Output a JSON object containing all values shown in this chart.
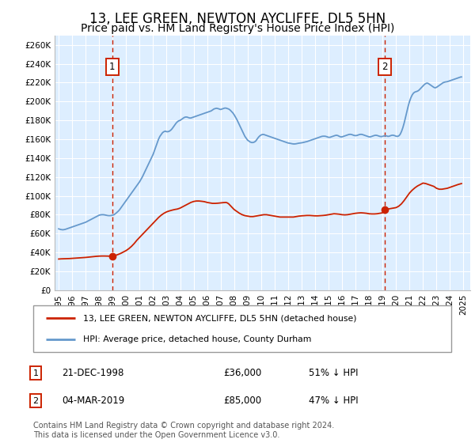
{
  "title": "13, LEE GREEN, NEWTON AYCLIFFE, DL5 5HN",
  "subtitle": "Price paid vs. HM Land Registry's House Price Index (HPI)",
  "title_fontsize": 12,
  "subtitle_fontsize": 10,
  "background_color": "#ffffff",
  "plot_bg_color": "#ddeeff",
  "grid_color": "#ffffff",
  "ylim": [
    0,
    270000
  ],
  "yticks": [
    0,
    20000,
    40000,
    60000,
    80000,
    100000,
    120000,
    140000,
    160000,
    180000,
    200000,
    220000,
    240000,
    260000
  ],
  "ytick_labels": [
    "£0",
    "£20K",
    "£40K",
    "£60K",
    "£80K",
    "£100K",
    "£120K",
    "£140K",
    "£160K",
    "£180K",
    "£200K",
    "£220K",
    "£240K",
    "£260K"
  ],
  "xlim_start": 1994.7,
  "xlim_end": 2025.5,
  "xticks": [
    1995,
    1996,
    1997,
    1998,
    1999,
    2000,
    2001,
    2002,
    2003,
    2004,
    2005,
    2006,
    2007,
    2008,
    2009,
    2010,
    2011,
    2012,
    2013,
    2014,
    2015,
    2016,
    2017,
    2018,
    2019,
    2020,
    2021,
    2022,
    2023,
    2024,
    2025
  ],
  "hpi_color": "#6699cc",
  "property_color": "#cc2200",
  "sale1_x": 1998.97,
  "sale1_y": 36000,
  "sale2_x": 2019.17,
  "sale2_y": 85000,
  "vline_color": "#cc2200",
  "marker_color": "#cc2200",
  "note1_date": "21-DEC-1998",
  "note1_price": "£36,000",
  "note1_hpi": "51% ↓ HPI",
  "note2_date": "04-MAR-2019",
  "note2_price": "£85,000",
  "note2_hpi": "47% ↓ HPI",
  "footer": "Contains HM Land Registry data © Crown copyright and database right 2024.\nThis data is licensed under the Open Government Licence v3.0.",
  "hpi_data": [
    [
      1995.0,
      65000
    ],
    [
      1995.1,
      64500
    ],
    [
      1995.2,
      64200
    ],
    [
      1995.3,
      64000
    ],
    [
      1995.4,
      64200
    ],
    [
      1995.5,
      64500
    ],
    [
      1995.6,
      65000
    ],
    [
      1995.7,
      65500
    ],
    [
      1995.8,
      66000
    ],
    [
      1995.9,
      66500
    ],
    [
      1996.0,
      67000
    ],
    [
      1996.1,
      67500
    ],
    [
      1996.2,
      68000
    ],
    [
      1996.3,
      68500
    ],
    [
      1996.4,
      69000
    ],
    [
      1996.5,
      69500
    ],
    [
      1996.6,
      70000
    ],
    [
      1996.7,
      70500
    ],
    [
      1996.8,
      71000
    ],
    [
      1996.9,
      71500
    ],
    [
      1997.0,
      72000
    ],
    [
      1997.1,
      72800
    ],
    [
      1997.2,
      73500
    ],
    [
      1997.3,
      74200
    ],
    [
      1997.4,
      75000
    ],
    [
      1997.5,
      75800
    ],
    [
      1997.6,
      76500
    ],
    [
      1997.7,
      77200
    ],
    [
      1997.8,
      78000
    ],
    [
      1997.9,
      78800
    ],
    [
      1998.0,
      79500
    ],
    [
      1998.1,
      79800
    ],
    [
      1998.2,
      80000
    ],
    [
      1998.3,
      80000
    ],
    [
      1998.4,
      79800
    ],
    [
      1998.5,
      79500
    ],
    [
      1998.6,
      79200
    ],
    [
      1998.7,
      79000
    ],
    [
      1998.8,
      79000
    ],
    [
      1998.9,
      79200
    ],
    [
      1999.0,
      79500
    ],
    [
      1999.1,
      80000
    ],
    [
      1999.2,
      81000
    ],
    [
      1999.3,
      82200
    ],
    [
      1999.4,
      83500
    ],
    [
      1999.5,
      85000
    ],
    [
      1999.6,
      87000
    ],
    [
      1999.7,
      89000
    ],
    [
      1999.8,
      91000
    ],
    [
      1999.9,
      93000
    ],
    [
      2000.0,
      95000
    ],
    [
      2000.1,
      97000
    ],
    [
      2000.2,
      99000
    ],
    [
      2000.3,
      101000
    ],
    [
      2000.4,
      103000
    ],
    [
      2000.5,
      105000
    ],
    [
      2000.6,
      107000
    ],
    [
      2000.7,
      109000
    ],
    [
      2000.8,
      111000
    ],
    [
      2000.9,
      113000
    ],
    [
      2001.0,
      115000
    ],
    [
      2001.1,
      117500
    ],
    [
      2001.2,
      120000
    ],
    [
      2001.3,
      123000
    ],
    [
      2001.4,
      126000
    ],
    [
      2001.5,
      129000
    ],
    [
      2001.6,
      132000
    ],
    [
      2001.7,
      135000
    ],
    [
      2001.8,
      138000
    ],
    [
      2001.9,
      141000
    ],
    [
      2002.0,
      144000
    ],
    [
      2002.1,
      148000
    ],
    [
      2002.2,
      152000
    ],
    [
      2002.3,
      156000
    ],
    [
      2002.4,
      160000
    ],
    [
      2002.5,
      163000
    ],
    [
      2002.6,
      165000
    ],
    [
      2002.7,
      167000
    ],
    [
      2002.8,
      168000
    ],
    [
      2002.9,
      168500
    ],
    [
      2003.0,
      168000
    ],
    [
      2003.1,
      168000
    ],
    [
      2003.2,
      168500
    ],
    [
      2003.3,
      169500
    ],
    [
      2003.4,
      171000
    ],
    [
      2003.5,
      173000
    ],
    [
      2003.6,
      175000
    ],
    [
      2003.7,
      177000
    ],
    [
      2003.8,
      178500
    ],
    [
      2003.9,
      179500
    ],
    [
      2004.0,
      180000
    ],
    [
      2004.1,
      181000
    ],
    [
      2004.2,
      182000
    ],
    [
      2004.3,
      183000
    ],
    [
      2004.4,
      183500
    ],
    [
      2004.5,
      183500
    ],
    [
      2004.6,
      183000
    ],
    [
      2004.7,
      182500
    ],
    [
      2004.8,
      182500
    ],
    [
      2004.9,
      183000
    ],
    [
      2005.0,
      183500
    ],
    [
      2005.1,
      184000
    ],
    [
      2005.2,
      184500
    ],
    [
      2005.3,
      185000
    ],
    [
      2005.4,
      185500
    ],
    [
      2005.5,
      186000
    ],
    [
      2005.6,
      186500
    ],
    [
      2005.7,
      187000
    ],
    [
      2005.8,
      187500
    ],
    [
      2005.9,
      188000
    ],
    [
      2006.0,
      188500
    ],
    [
      2006.1,
      189000
    ],
    [
      2006.2,
      189500
    ],
    [
      2006.3,
      190000
    ],
    [
      2006.4,
      191000
    ],
    [
      2006.5,
      192000
    ],
    [
      2006.6,
      192500
    ],
    [
      2006.7,
      192800
    ],
    [
      2006.8,
      192500
    ],
    [
      2006.9,
      192000
    ],
    [
      2007.0,
      191500
    ],
    [
      2007.1,
      192000
    ],
    [
      2007.2,
      192500
    ],
    [
      2007.3,
      193000
    ],
    [
      2007.4,
      193000
    ],
    [
      2007.5,
      192500
    ],
    [
      2007.6,
      192000
    ],
    [
      2007.7,
      191000
    ],
    [
      2007.8,
      189500
    ],
    [
      2007.9,
      188000
    ],
    [
      2008.0,
      186000
    ],
    [
      2008.1,
      183500
    ],
    [
      2008.2,
      181000
    ],
    [
      2008.3,
      178000
    ],
    [
      2008.4,
      175000
    ],
    [
      2008.5,
      172000
    ],
    [
      2008.6,
      169000
    ],
    [
      2008.7,
      166000
    ],
    [
      2008.8,
      163000
    ],
    [
      2008.9,
      161000
    ],
    [
      2009.0,
      159000
    ],
    [
      2009.1,
      158000
    ],
    [
      2009.2,
      157000
    ],
    [
      2009.3,
      156500
    ],
    [
      2009.4,
      156500
    ],
    [
      2009.5,
      157000
    ],
    [
      2009.6,
      158000
    ],
    [
      2009.7,
      160000
    ],
    [
      2009.8,
      162000
    ],
    [
      2009.9,
      163500
    ],
    [
      2010.0,
      164500
    ],
    [
      2010.1,
      165000
    ],
    [
      2010.2,
      165000
    ],
    [
      2010.3,
      164500
    ],
    [
      2010.4,
      164000
    ],
    [
      2010.5,
      163500
    ],
    [
      2010.6,
      163000
    ],
    [
      2010.7,
      162500
    ],
    [
      2010.8,
      162000
    ],
    [
      2010.9,
      161500
    ],
    [
      2011.0,
      161000
    ],
    [
      2011.1,
      160500
    ],
    [
      2011.2,
      160000
    ],
    [
      2011.3,
      159500
    ],
    [
      2011.4,
      159000
    ],
    [
      2011.5,
      158500
    ],
    [
      2011.6,
      158000
    ],
    [
      2011.7,
      157500
    ],
    [
      2011.8,
      157000
    ],
    [
      2011.9,
      156500
    ],
    [
      2012.0,
      156000
    ],
    [
      2012.1,
      155800
    ],
    [
      2012.2,
      155500
    ],
    [
      2012.3,
      155200
    ],
    [
      2012.4,
      155000
    ],
    [
      2012.5,
      155000
    ],
    [
      2012.6,
      155200
    ],
    [
      2012.7,
      155500
    ],
    [
      2012.8,
      155800
    ],
    [
      2012.9,
      156000
    ],
    [
      2013.0,
      156200
    ],
    [
      2013.1,
      156500
    ],
    [
      2013.2,
      156800
    ],
    [
      2013.3,
      157200
    ],
    [
      2013.4,
      157500
    ],
    [
      2013.5,
      158000
    ],
    [
      2013.6,
      158500
    ],
    [
      2013.7,
      159000
    ],
    [
      2013.8,
      159500
    ],
    [
      2013.9,
      160000
    ],
    [
      2014.0,
      160500
    ],
    [
      2014.1,
      161000
    ],
    [
      2014.2,
      161500
    ],
    [
      2014.3,
      162000
    ],
    [
      2014.4,
      162500
    ],
    [
      2014.5,
      163000
    ],
    [
      2014.6,
      163200
    ],
    [
      2014.7,
      163200
    ],
    [
      2014.8,
      163000
    ],
    [
      2014.9,
      162500
    ],
    [
      2015.0,
      162000
    ],
    [
      2015.1,
      162000
    ],
    [
      2015.2,
      162500
    ],
    [
      2015.3,
      163000
    ],
    [
      2015.4,
      163500
    ],
    [
      2015.5,
      164000
    ],
    [
      2015.6,
      164200
    ],
    [
      2015.7,
      163800
    ],
    [
      2015.8,
      163000
    ],
    [
      2015.9,
      162500
    ],
    [
      2016.0,
      162500
    ],
    [
      2016.1,
      163000
    ],
    [
      2016.2,
      163500
    ],
    [
      2016.3,
      164000
    ],
    [
      2016.4,
      164500
    ],
    [
      2016.5,
      165000
    ],
    [
      2016.6,
      165200
    ],
    [
      2016.7,
      165000
    ],
    [
      2016.8,
      164500
    ],
    [
      2016.9,
      164000
    ],
    [
      2017.0,
      163800
    ],
    [
      2017.1,
      164000
    ],
    [
      2017.2,
      164500
    ],
    [
      2017.3,
      165000
    ],
    [
      2017.4,
      165200
    ],
    [
      2017.5,
      165000
    ],
    [
      2017.6,
      164500
    ],
    [
      2017.7,
      164000
    ],
    [
      2017.8,
      163500
    ],
    [
      2017.9,
      163000
    ],
    [
      2018.0,
      162500
    ],
    [
      2018.1,
      162500
    ],
    [
      2018.2,
      163000
    ],
    [
      2018.3,
      163500
    ],
    [
      2018.4,
      164000
    ],
    [
      2018.5,
      164200
    ],
    [
      2018.6,
      164000
    ],
    [
      2018.7,
      163500
    ],
    [
      2018.8,
      163000
    ],
    [
      2018.9,
      162800
    ],
    [
      2019.0,
      163000
    ],
    [
      2019.1,
      163500
    ],
    [
      2019.2,
      163800
    ],
    [
      2019.3,
      163500
    ],
    [
      2019.4,
      163000
    ],
    [
      2019.5,
      163200
    ],
    [
      2019.6,
      163800
    ],
    [
      2019.7,
      164200
    ],
    [
      2019.8,
      164200
    ],
    [
      2019.9,
      163800
    ],
    [
      2020.0,
      163200
    ],
    [
      2020.1,
      163000
    ],
    [
      2020.2,
      163500
    ],
    [
      2020.3,
      165000
    ],
    [
      2020.4,
      168000
    ],
    [
      2020.5,
      172000
    ],
    [
      2020.6,
      177000
    ],
    [
      2020.7,
      183000
    ],
    [
      2020.8,
      189000
    ],
    [
      2020.9,
      195000
    ],
    [
      2021.0,
      200000
    ],
    [
      2021.1,
      204000
    ],
    [
      2021.2,
      207000
    ],
    [
      2021.3,
      209000
    ],
    [
      2021.4,
      210000
    ],
    [
      2021.5,
      210500
    ],
    [
      2021.6,
      211000
    ],
    [
      2021.7,
      212000
    ],
    [
      2021.8,
      213500
    ],
    [
      2021.9,
      215000
    ],
    [
      2022.0,
      216500
    ],
    [
      2022.1,
      218000
    ],
    [
      2022.2,
      219000
    ],
    [
      2022.3,
      219500
    ],
    [
      2022.4,
      219000
    ],
    [
      2022.5,
      218000
    ],
    [
      2022.6,
      217000
    ],
    [
      2022.7,
      216000
    ],
    [
      2022.8,
      215000
    ],
    [
      2022.9,
      214500
    ],
    [
      2023.0,
      215000
    ],
    [
      2023.1,
      216000
    ],
    [
      2023.2,
      217000
    ],
    [
      2023.3,
      218000
    ],
    [
      2023.4,
      219000
    ],
    [
      2023.5,
      220000
    ],
    [
      2023.6,
      220500
    ],
    [
      2023.7,
      220800
    ],
    [
      2023.8,
      221000
    ],
    [
      2023.9,
      221500
    ],
    [
      2024.0,
      222000
    ],
    [
      2024.1,
      222500
    ],
    [
      2024.2,
      223000
    ],
    [
      2024.3,
      223500
    ],
    [
      2024.4,
      224000
    ],
    [
      2024.5,
      224500
    ],
    [
      2024.6,
      225000
    ],
    [
      2024.7,
      225500
    ],
    [
      2024.8,
      226000
    ],
    [
      2024.85,
      226000
    ]
  ],
  "property_data": [
    [
      1995.0,
      33000
    ],
    [
      1995.2,
      33200
    ],
    [
      1995.4,
      33300
    ],
    [
      1995.6,
      33400
    ],
    [
      1995.8,
      33500
    ],
    [
      1996.0,
      33700
    ],
    [
      1996.2,
      33900
    ],
    [
      1996.4,
      34100
    ],
    [
      1996.6,
      34300
    ],
    [
      1996.8,
      34500
    ],
    [
      1997.0,
      34700
    ],
    [
      1997.2,
      35000
    ],
    [
      1997.4,
      35300
    ],
    [
      1997.6,
      35600
    ],
    [
      1997.8,
      35900
    ],
    [
      1998.0,
      36100
    ],
    [
      1998.2,
      36200
    ],
    [
      1998.4,
      36200
    ],
    [
      1998.6,
      36100
    ],
    [
      1998.8,
      36000
    ],
    [
      1998.97,
      36000
    ],
    [
      1999.0,
      36200
    ],
    [
      1999.2,
      36800
    ],
    [
      1999.4,
      37800
    ],
    [
      1999.6,
      39000
    ],
    [
      1999.8,
      40500
    ],
    [
      2000.0,
      42000
    ],
    [
      2000.2,
      44000
    ],
    [
      2000.4,
      46500
    ],
    [
      2000.6,
      49500
    ],
    [
      2000.8,
      53000
    ],
    [
      2001.0,
      56000
    ],
    [
      2001.2,
      59000
    ],
    [
      2001.4,
      62000
    ],
    [
      2001.6,
      65000
    ],
    [
      2001.8,
      68000
    ],
    [
      2002.0,
      71000
    ],
    [
      2002.2,
      74000
    ],
    [
      2002.4,
      77000
    ],
    [
      2002.6,
      79500
    ],
    [
      2002.8,
      81500
    ],
    [
      2003.0,
      83000
    ],
    [
      2003.2,
      84000
    ],
    [
      2003.4,
      84800
    ],
    [
      2003.6,
      85500
    ],
    [
      2003.8,
      86000
    ],
    [
      2004.0,
      87000
    ],
    [
      2004.2,
      88500
    ],
    [
      2004.4,
      90000
    ],
    [
      2004.6,
      91500
    ],
    [
      2004.8,
      93000
    ],
    [
      2005.0,
      94000
    ],
    [
      2005.2,
      94500
    ],
    [
      2005.4,
      94500
    ],
    [
      2005.6,
      94200
    ],
    [
      2005.8,
      93800
    ],
    [
      2006.0,
      93000
    ],
    [
      2006.2,
      92500
    ],
    [
      2006.4,
      92000
    ],
    [
      2006.6,
      92000
    ],
    [
      2006.8,
      92200
    ],
    [
      2007.0,
      92500
    ],
    [
      2007.2,
      92800
    ],
    [
      2007.4,
      93000
    ],
    [
      2007.5,
      92500
    ],
    [
      2007.6,
      91500
    ],
    [
      2007.7,
      90000
    ],
    [
      2007.8,
      88500
    ],
    [
      2007.9,
      87000
    ],
    [
      2008.0,
      85500
    ],
    [
      2008.2,
      83500
    ],
    [
      2008.4,
      81500
    ],
    [
      2008.6,
      80000
    ],
    [
      2008.8,
      79000
    ],
    [
      2009.0,
      78500
    ],
    [
      2009.2,
      78000
    ],
    [
      2009.4,
      78000
    ],
    [
      2009.6,
      78500
    ],
    [
      2009.8,
      79000
    ],
    [
      2010.0,
      79500
    ],
    [
      2010.2,
      80000
    ],
    [
      2010.4,
      80000
    ],
    [
      2010.6,
      79500
    ],
    [
      2010.8,
      79000
    ],
    [
      2011.0,
      78500
    ],
    [
      2011.2,
      78000
    ],
    [
      2011.4,
      77500
    ],
    [
      2011.6,
      77500
    ],
    [
      2011.8,
      77500
    ],
    [
      2012.0,
      77500
    ],
    [
      2012.2,
      77500
    ],
    [
      2012.4,
      77500
    ],
    [
      2012.6,
      78000
    ],
    [
      2012.8,
      78500
    ],
    [
      2013.0,
      78800
    ],
    [
      2013.2,
      79000
    ],
    [
      2013.4,
      79200
    ],
    [
      2013.6,
      79200
    ],
    [
      2013.8,
      79000
    ],
    [
      2014.0,
      78800
    ],
    [
      2014.2,
      78800
    ],
    [
      2014.4,
      79000
    ],
    [
      2014.6,
      79200
    ],
    [
      2014.8,
      79500
    ],
    [
      2015.0,
      80000
    ],
    [
      2015.2,
      80500
    ],
    [
      2015.4,
      81000
    ],
    [
      2015.6,
      80800
    ],
    [
      2015.8,
      80500
    ],
    [
      2016.0,
      80000
    ],
    [
      2016.2,
      79800
    ],
    [
      2016.4,
      80000
    ],
    [
      2016.6,
      80500
    ],
    [
      2016.8,
      81000
    ],
    [
      2017.0,
      81500
    ],
    [
      2017.2,
      81800
    ],
    [
      2017.4,
      82000
    ],
    [
      2017.6,
      81800
    ],
    [
      2017.8,
      81500
    ],
    [
      2018.0,
      81000
    ],
    [
      2018.2,
      80800
    ],
    [
      2018.4,
      80800
    ],
    [
      2018.6,
      81000
    ],
    [
      2018.8,
      81500
    ],
    [
      2018.97,
      82000
    ],
    [
      2019.0,
      82000
    ],
    [
      2019.17,
      85000
    ],
    [
      2019.2,
      85500
    ],
    [
      2019.4,
      86000
    ],
    [
      2019.6,
      86500
    ],
    [
      2019.8,
      87000
    ],
    [
      2020.0,
      87500
    ],
    [
      2020.2,
      89000
    ],
    [
      2020.4,
      91500
    ],
    [
      2020.6,
      95000
    ],
    [
      2020.8,
      99000
    ],
    [
      2021.0,
      103000
    ],
    [
      2021.2,
      106000
    ],
    [
      2021.4,
      108500
    ],
    [
      2021.6,
      110500
    ],
    [
      2021.8,
      112000
    ],
    [
      2022.0,
      113500
    ],
    [
      2022.2,
      113000
    ],
    [
      2022.4,
      112000
    ],
    [
      2022.6,
      111000
    ],
    [
      2022.8,
      110000
    ],
    [
      2023.0,
      108000
    ],
    [
      2023.2,
      107000
    ],
    [
      2023.4,
      107000
    ],
    [
      2023.6,
      107500
    ],
    [
      2023.8,
      108000
    ],
    [
      2024.0,
      109000
    ],
    [
      2024.2,
      110000
    ],
    [
      2024.4,
      111000
    ],
    [
      2024.6,
      112000
    ],
    [
      2024.85,
      113000
    ]
  ]
}
